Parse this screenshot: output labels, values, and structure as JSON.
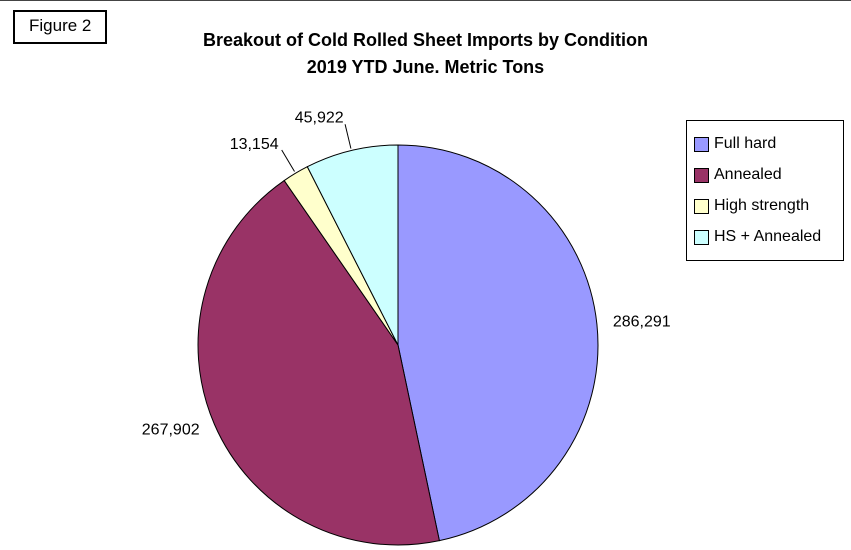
{
  "figure_label": "Figure 2",
  "title_line1": "Breakout of Cold Rolled Sheet Imports by Condition",
  "title_line2": "2019 YTD June. Metric Tons",
  "chart_data": {
    "type": "pie",
    "title": "Breakout of Cold Rolled Sheet Imports by Condition 2019 YTD June. Metric Tons",
    "units": "Metric Tons",
    "legend_position": "right",
    "start_angle_deg": 0,
    "direction": "clockwise",
    "slices": [
      {
        "label": "Full hard",
        "value": 286291,
        "value_label": "286,291",
        "color": "#9999FF"
      },
      {
        "label": "Annealed",
        "value": 267902,
        "value_label": "267,902",
        "color": "#993366"
      },
      {
        "label": "High strength",
        "value": 13154,
        "value_label": "13,154",
        "color": "#FFFFCC"
      },
      {
        "label": "HS + Annealed",
        "value": 45922,
        "value_label": "45,922",
        "color": "#CCFFFF"
      }
    ],
    "slice_border_color": "#000000"
  }
}
